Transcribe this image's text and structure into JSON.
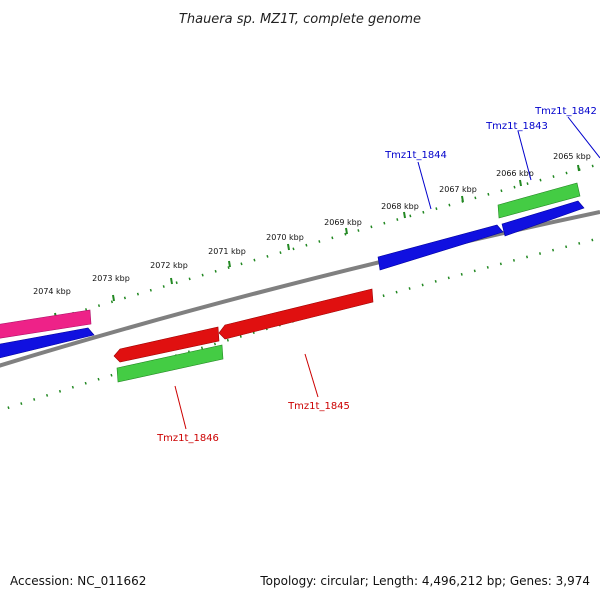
{
  "title": "Thauera sp. MZ1T, complete genome",
  "footer": {
    "accession": "Accession: NC_011662",
    "summary": "Topology: circular; Length: 4,496,212 bp; Genes: 3,974"
  },
  "scale": {
    "labels": [
      "2074 kbp",
      "2073 kbp",
      "2072 kbp",
      "2071 kbp",
      "2070 kbp",
      "2069 kbp",
      "2068 kbp",
      "2067 kbp",
      "2066 kbp",
      "2065 kbp"
    ]
  },
  "genes": [
    {
      "label": "Tmz1t_1842",
      "color": "#0000cc"
    },
    {
      "label": "Tmz1t_1843",
      "color": "#0000cc"
    },
    {
      "label": "Tmz1t_1844",
      "color": "#0000cc"
    },
    {
      "label": "Tmz1t_1845",
      "color": "#cc0000"
    },
    {
      "label": "Tmz1t_1846",
      "color": "#cc0000"
    }
  ],
  "colors": {
    "backbone": "#808080",
    "ticks": "#228822",
    "forward_cds": "#1010e0",
    "reverse_cds": "#e01010",
    "forward_rna": "#44cc44",
    "reverse_rna": "#44cc44",
    "other_feature": "#ee2288"
  }
}
